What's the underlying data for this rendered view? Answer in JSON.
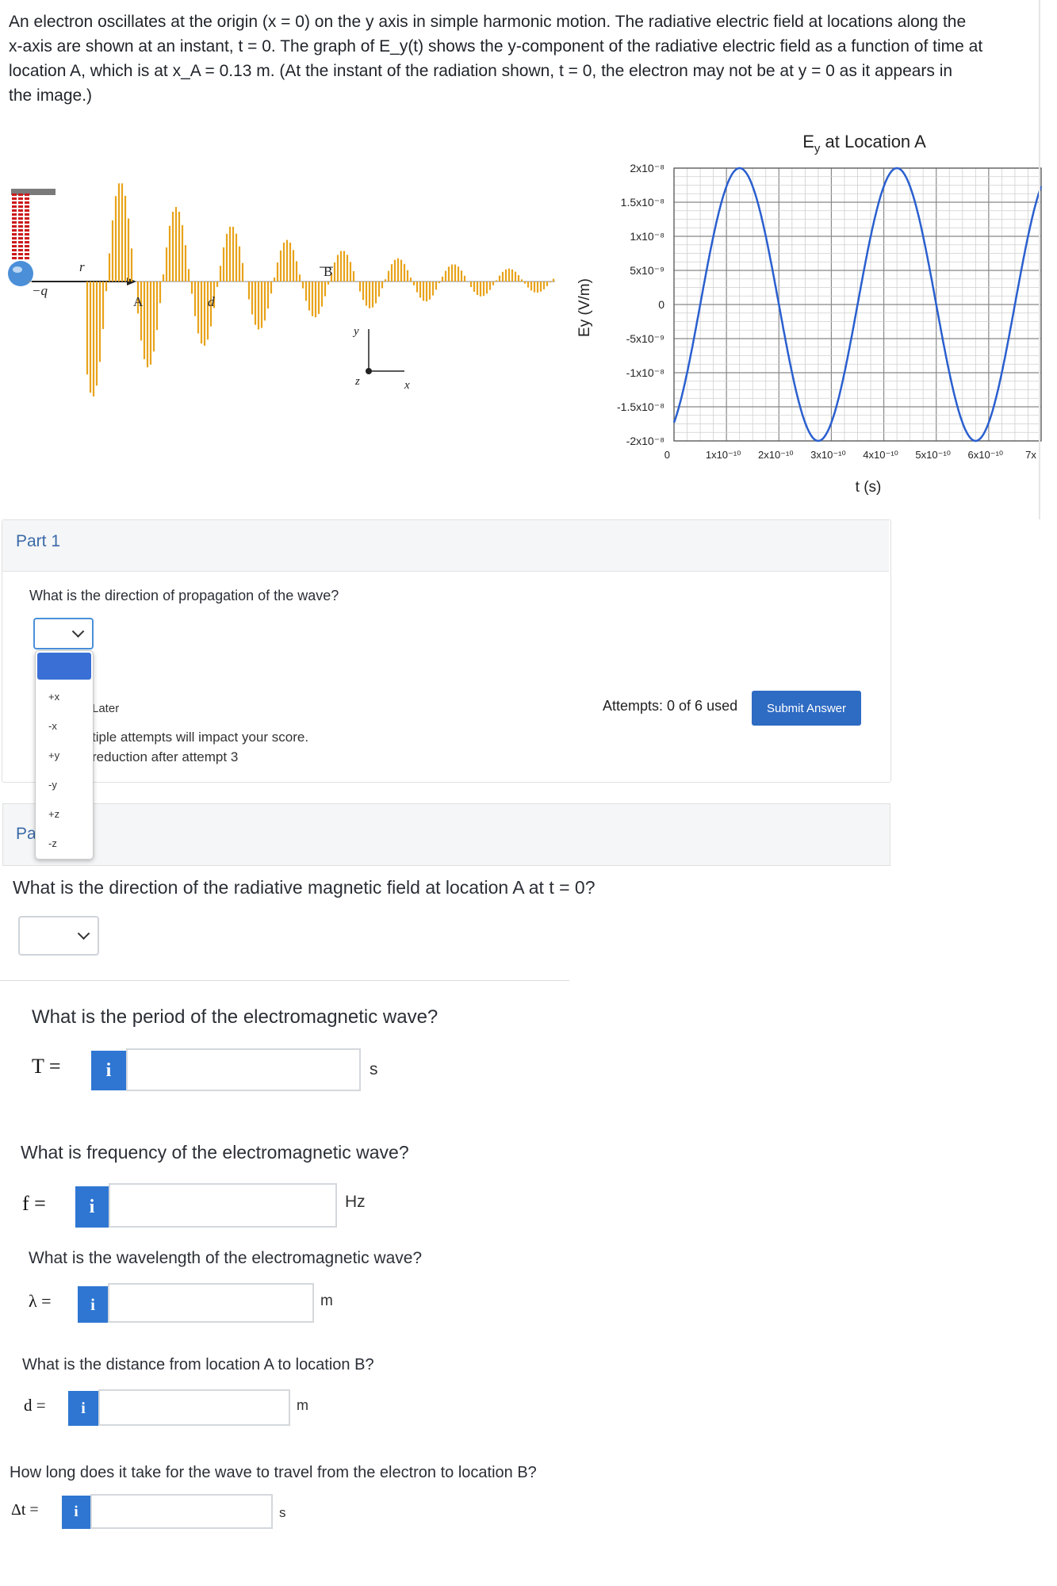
{
  "problem": {
    "line1": "An electron oscillates at the origin (x = 0) on the  y axis in simple harmonic motion. The radiative electric field at locations along the",
    "line2": "x-axis are shown at an instant, t = 0. The graph of  E_y(t)  shows the y-component of the radiative electric field as a function of time at",
    "line3": "location A, which is at  x_A = 0.13 m. (At the instant of the radiation shown,  t = 0, the electron may not be at  y = 0 as it appears in",
    "line4": "the image.)"
  },
  "diagram": {
    "charge_label": "−q",
    "r_label": "r⃗",
    "label_A": "A",
    "label_B": "B",
    "label_d": "d",
    "axis_y": "y",
    "axis_x": "x",
    "axis_z": "z"
  },
  "chart_data": {
    "type": "line",
    "title": "E_y at Location A",
    "xlabel": "t (s)",
    "ylabel": "Ey (V/m)",
    "xlim": [
      0,
      7e-10
    ],
    "ylim": [
      -2e-08,
      2e-08
    ],
    "y_tick_labels": [
      "2x10⁻⁸",
      "1.5x10⁻⁸",
      "1x10⁻⁸",
      "5x10⁻⁹",
      "0",
      "-5x10⁻⁹",
      "-1x10⁻⁸",
      "-1.5x10⁻⁸",
      "-2x10⁻⁸"
    ],
    "x_tick_labels": [
      "0",
      "1x10⁻¹⁰",
      "2x10⁻¹⁰",
      "3x10⁻¹⁰",
      "4x10⁻¹⁰",
      "5x10⁻¹⁰",
      "6x10⁻¹⁰",
      "7x"
    ],
    "grid": true,
    "line_color": "#2a5fcf",
    "amplitude": 2e-08,
    "period": 3e-10,
    "phase_peak_time": 1.25e-10
  },
  "part1": {
    "title": "Part 1",
    "question": "What is the direction of propagation of the wave?",
    "options": [
      "+x",
      "-x",
      "+y",
      "-y",
      "+z",
      "-z"
    ],
    "save_later": "Later",
    "warn1": "tiple attempts will impact your score.",
    "warn2": "reduction after attempt 3",
    "attempts": "Attempts: 0 of 6 used",
    "submit": "Submit Answer"
  },
  "part2": {
    "title_frag": "Pa",
    "q_magnetic": "What is the direction of the radiative magnetic field at location A at  t = 0?",
    "q_period": "What is the period of the electromagnetic wave?",
    "var_T": "T =",
    "unit_T": "s",
    "q_freq": "What is frequency of the electromagnetic wave?",
    "var_f": "f =",
    "unit_f": "Hz",
    "q_wavelength": "What is the wavelength of the electromagnetic wave?",
    "var_lambda": "λ =",
    "unit_lambda": "m",
    "q_distance": "What is the distance from location A to location B?",
    "var_d": "d =",
    "unit_d": "m",
    "q_time": "How long does it take for the wave to travel from the electron to location B?",
    "var_dt": "Δt =",
    "unit_dt": "s",
    "info": "i"
  },
  "colors": {
    "accent": "#2e6bc3",
    "info": "#2e76d2",
    "wave": "#e8a31a"
  }
}
